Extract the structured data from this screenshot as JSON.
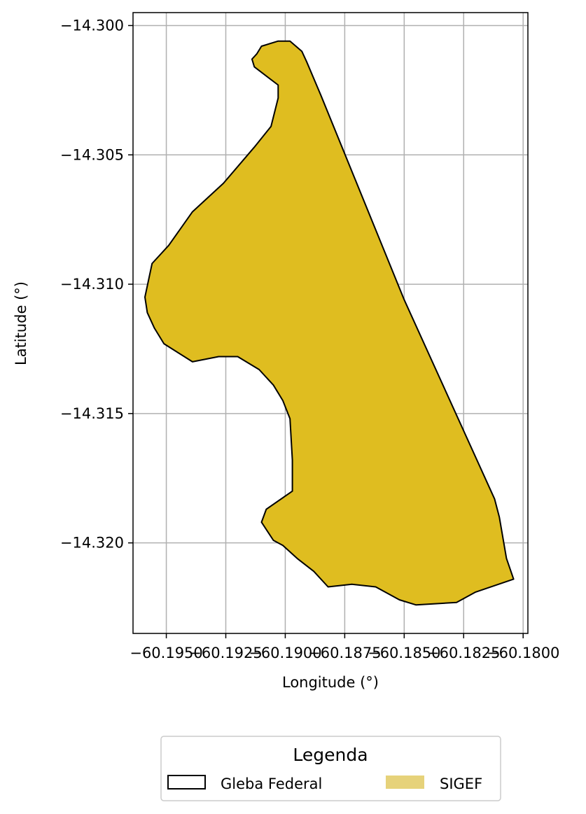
{
  "chart_data": {
    "type": "area",
    "xlabel": "Longitude (°)",
    "ylabel": "Latitude (°)",
    "xlim": [
      -60.1964,
      -60.1798
    ],
    "ylim": [
      -14.3235,
      -14.2995
    ],
    "grid": true,
    "x_ticks": [
      -60.195,
      -60.1925,
      -60.19,
      -60.1875,
      -60.185,
      -60.1825,
      -60.18
    ],
    "x_tick_labels": [
      "−60.1950",
      "−60.1925",
      "−60.1900",
      "−60.1875",
      "−60.1850",
      "−60.1825",
      "−60.1800"
    ],
    "y_ticks": [
      -14.3,
      -14.305,
      -14.31,
      -14.315,
      -14.32
    ],
    "y_tick_labels": [
      "−14.300",
      "−14.305",
      "−14.310",
      "−14.315",
      "−14.320"
    ],
    "legend": {
      "title": "Legenda",
      "placement": "bottom-center",
      "entries": [
        {
          "label": "Gleba Federal",
          "style": "outline",
          "color": "#000000"
        },
        {
          "label": "SIGEF",
          "style": "fill",
          "color": "#e6d27a"
        }
      ]
    },
    "series": [
      {
        "name": "SIGEF",
        "fill_color": "#dfbd20",
        "edge_color": "#000000",
        "coordinates": [
          [
            -60.1912,
            -14.3011
          ],
          [
            -60.191,
            -14.3008
          ],
          [
            -60.1903,
            -14.3006
          ],
          [
            -60.1898,
            -14.3006
          ],
          [
            -60.1893,
            -14.301
          ],
          [
            -60.1891,
            -14.3014
          ],
          [
            -60.1885,
            -14.3027
          ],
          [
            -60.185,
            -14.3106
          ],
          [
            -60.1812,
            -14.3183
          ],
          [
            -60.181,
            -14.319
          ],
          [
            -60.1807,
            -14.3206
          ],
          [
            -60.1804,
            -14.3214
          ],
          [
            -60.182,
            -14.3219
          ],
          [
            -60.1828,
            -14.3223
          ],
          [
            -60.1845,
            -14.3224
          ],
          [
            -60.1852,
            -14.3222
          ],
          [
            -60.1862,
            -14.3217
          ],
          [
            -60.1872,
            -14.3216
          ],
          [
            -60.1882,
            -14.3217
          ],
          [
            -60.1888,
            -14.3211
          ],
          [
            -60.1895,
            -14.3206
          ],
          [
            -60.1901,
            -14.3201
          ],
          [
            -60.1905,
            -14.3199
          ],
          [
            -60.191,
            -14.3192
          ],
          [
            -60.1908,
            -14.3187
          ],
          [
            -60.1897,
            -14.318
          ],
          [
            -60.1897,
            -14.3168
          ],
          [
            -60.1898,
            -14.3152
          ],
          [
            -60.1901,
            -14.3145
          ],
          [
            -60.1905,
            -14.3139
          ],
          [
            -60.1911,
            -14.3133
          ],
          [
            -60.192,
            -14.3128
          ],
          [
            -60.1928,
            -14.3128
          ],
          [
            -60.1939,
            -14.313
          ],
          [
            -60.1951,
            -14.3123
          ],
          [
            -60.1955,
            -14.3117
          ],
          [
            -60.1958,
            -14.3111
          ],
          [
            -60.1959,
            -14.3105
          ],
          [
            -60.1956,
            -14.3092
          ],
          [
            -60.1949,
            -14.3085
          ],
          [
            -60.1939,
            -14.3072
          ],
          [
            -60.1926,
            -14.3061
          ],
          [
            -60.1913,
            -14.3047
          ],
          [
            -60.1906,
            -14.3039
          ],
          [
            -60.1903,
            -14.3028
          ],
          [
            -60.1903,
            -14.3023
          ],
          [
            -60.1913,
            -14.3016
          ],
          [
            -60.1914,
            -14.3013
          ]
        ]
      }
    ]
  }
}
